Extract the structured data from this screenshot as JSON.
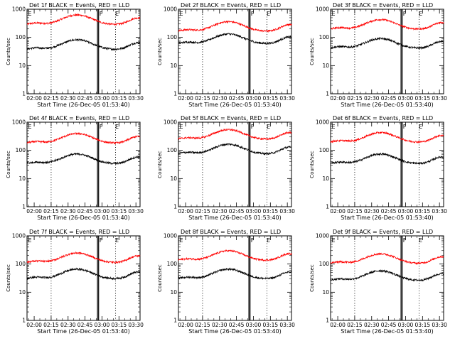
{
  "chart_data": {
    "type": "line",
    "layout": "3x3 grid",
    "x_tick_labels": [
      "02:00",
      "02:15",
      "02:30",
      "02:45",
      "03:00",
      "03:15",
      "03:30"
    ],
    "x_range": [
      "01:53:40",
      "03:33:40"
    ],
    "xlabel": "Start Time (26-Dec-05 01:53:40)",
    "ylabel": "Counts/sec",
    "yscale": "log",
    "ylim": [
      1,
      1000
    ],
    "y_tick_labels": [
      "1",
      "10",
      "100",
      "1000"
    ],
    "series_colors": {
      "events": "#000000",
      "lld": "#ff0000"
    },
    "markers": [
      {
        "type": "dotted",
        "time": "02:15"
      },
      {
        "type": "dotted",
        "time": "03:12"
      },
      {
        "type": "solid",
        "time": "02:56"
      },
      {
        "type": "solid",
        "time": "02:57"
      }
    ],
    "marker_labels": [
      "E",
      "F",
      "E"
    ],
    "panels": [
      {
        "title": "Det 1f BLACK = Events, RED = LLD",
        "events_base": 50,
        "lld_base": 380
      },
      {
        "title": "Det 2f BLACK = Events, RED = LLD",
        "events_base": 80,
        "lld_base": 220
      },
      {
        "title": "Det 3f BLACK = Events, RED = LLD",
        "events_base": 55,
        "lld_base": 260
      },
      {
        "title": "Det 4f BLACK = Events, RED = LLD",
        "events_base": 45,
        "lld_base": 240
      },
      {
        "title": "Det 5f BLACK = Events, RED = LLD",
        "events_base": 100,
        "lld_base": 330
      },
      {
        "title": "Det 6f BLACK = Events, RED = LLD",
        "events_base": 45,
        "lld_base": 260
      },
      {
        "title": "Det 7f BLACK = Events, RED = LLD",
        "events_base": 40,
        "lld_base": 150
      },
      {
        "title": "Det 8f BLACK = Events, RED = LLD",
        "events_base": 40,
        "lld_base": 180
      },
      {
        "title": "Det 9f BLACK = Events, RED = LLD",
        "events_base": 35,
        "lld_base": 140
      }
    ]
  }
}
